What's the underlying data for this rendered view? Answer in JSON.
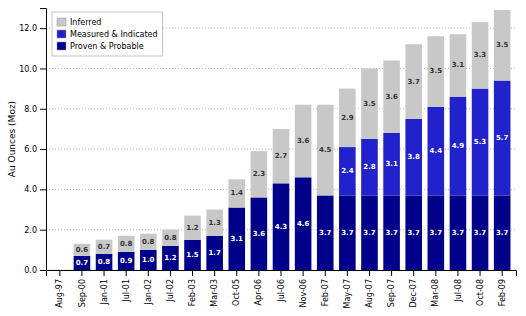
{
  "chart_data": {
    "type": "bar",
    "stacked": true,
    "data_labels": true,
    "grid": true,
    "legend": "upper left",
    "ylabel": "Au Ounces (Moz)",
    "categories": [
      "Aug-97",
      "Sep-00",
      "Jan-01",
      "Jul-01",
      "Jan-02",
      "Jul-02",
      "Feb-03",
      "Mar-03",
      "Oct-05",
      "Apr-06",
      "Jul-06",
      "Nov-06",
      "Feb-07",
      "May-07",
      "Aug-07",
      "Sep-07",
      "Dec-07",
      "Mar-08",
      "Jul-08",
      "Oct-08",
      "Feb-09"
    ],
    "series": [
      {
        "name": "Proven & Probable",
        "color": "#00008B",
        "values": [
          0.0,
          0.7,
          0.8,
          0.9,
          1.0,
          1.2,
          1.5,
          1.7,
          3.1,
          3.6,
          4.3,
          4.6,
          3.7,
          3.7,
          3.7,
          3.7,
          3.7,
          3.7,
          3.7,
          3.7,
          3.7
        ],
        "value_labels": [
          null,
          "0.7",
          "0.8",
          "0.9",
          "1.0",
          "1.2",
          "1.5",
          "1.7",
          "3.1",
          "3.6",
          "4.3",
          "4.6",
          "3.7",
          "3.7",
          "3.7",
          "3.7",
          "3.7",
          "3.7",
          "3.7",
          "3.7",
          "3.7"
        ]
      },
      {
        "name": "Measured & Indicated",
        "color": "#2222CC",
        "values": [
          0.0,
          0.0,
          0.0,
          0.0,
          0.0,
          0.0,
          0.0,
          0.0,
          0.0,
          0.0,
          0.0,
          0.0,
          0.0,
          2.4,
          2.8,
          3.1,
          3.8,
          4.4,
          4.9,
          5.3,
          5.7
        ],
        "value_labels": [
          null,
          null,
          null,
          null,
          null,
          null,
          null,
          null,
          null,
          null,
          null,
          null,
          null,
          "2.4",
          "2.8",
          "3.1",
          "3.8",
          "4.4",
          "4.9",
          "5.3",
          "5.7"
        ]
      },
      {
        "name": "Inferred",
        "color": "#C8C8C8",
        "values": [
          0.0,
          0.6,
          0.7,
          0.8,
          0.8,
          0.8,
          1.2,
          1.3,
          1.4,
          2.3,
          2.7,
          3.6,
          4.5,
          2.9,
          3.5,
          3.6,
          3.7,
          3.5,
          3.1,
          3.3,
          3.5
        ],
        "value_labels": [
          null,
          "0.6",
          "0.7",
          "0.8",
          "0.8",
          "0.8",
          "1.2",
          "1.3",
          "1.4",
          "2.3",
          "2.7",
          "3.6",
          "4.5",
          "2.9",
          "3.5",
          "3.6",
          "3.7",
          "3.5",
          "3.1",
          "3.3",
          "3.5"
        ]
      }
    ],
    "ylim": [
      0,
      13
    ],
    "yticks": [
      {
        "value": 0,
        "label": "0.0"
      },
      {
        "value": 2,
        "label": "2.0"
      },
      {
        "value": 4,
        "label": "4.0"
      },
      {
        "value": 6,
        "label": "6.0"
      },
      {
        "value": 8,
        "label": "8.0"
      },
      {
        "value": 10,
        "label": "10.0"
      },
      {
        "value": 12,
        "label": "12.0"
      }
    ]
  }
}
